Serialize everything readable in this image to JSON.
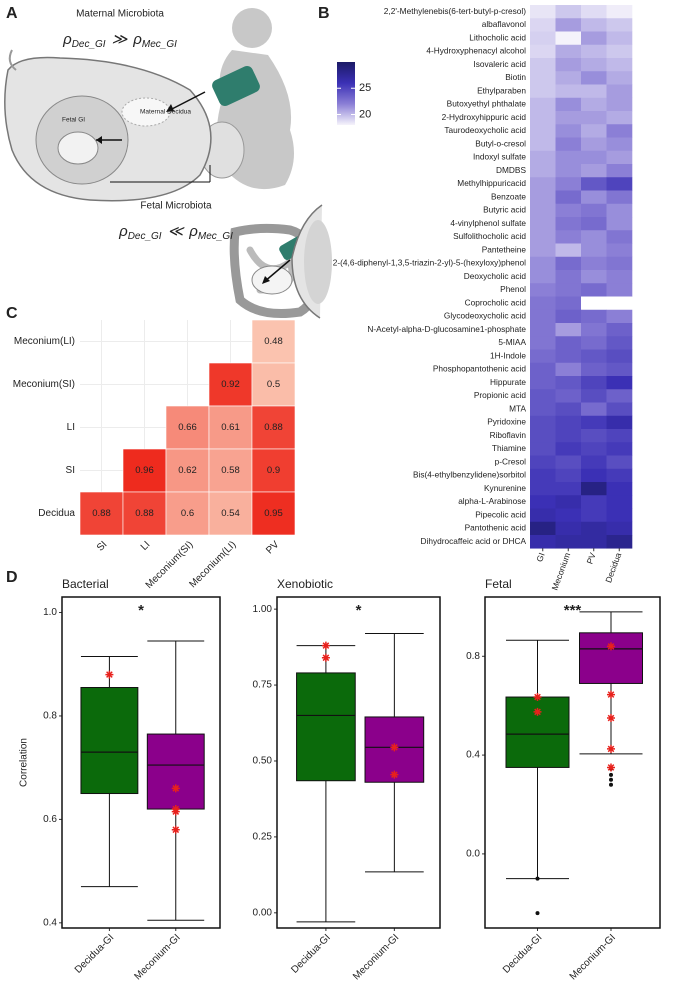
{
  "panel_labels": [
    "A",
    "B",
    "C",
    "D"
  ],
  "panel_a": {
    "symbol": "ρ",
    "top_title": "Maternal Microbiota",
    "top_formula": {
      "left": "Dec_GI",
      "op": "≫",
      "right": "Mec_GI"
    },
    "maternal_decidua": "Maternal Decidua",
    "fetal_gi": "Fetal GI",
    "bottom_title": "Fetal Microbiota",
    "bottom_formula": {
      "left": "Dec_GI",
      "op": "≪",
      "right": "Mec_GI"
    }
  },
  "chart_data": [
    {
      "type": "heatmap",
      "rows": [
        "2,2'-Methylenebis(6-tert-butyl-p-cresol)",
        "albaflavonol",
        "Lithocholic acid",
        "4-Hydroxyphenacyl alcohol",
        "Isovaleric acid",
        "Biotin",
        "Ethylparaben",
        "Butoxyethyl phthalate",
        "2-Hydroxyhippuric acid",
        "Taurodeoxycholic acid",
        "Butyl-o-cresol",
        "Indoxyl sulfate",
        "DMDBS",
        "Methylhippuricacid",
        "Benzoate",
        "Butyric acid",
        "4-vinylphenol sulfate",
        "Sulfolithocholic acid",
        "Pantetheine",
        "2-(4,6-diphenyl-1,3,5-triazin-2-yl)-5-(hexyloxy)phenol",
        "Deoxycholic acid",
        "Phenol",
        "Coprocholic acid",
        "Glycodeoxycholic acid",
        "N-Acetyl-alpha-D-glucosamine1-phosphate",
        "5-MIAA",
        "1H-Indole",
        "Phosphopantothenic acid",
        "Hippurate",
        "Propionic acid",
        "MTA",
        "Pyridoxine",
        "Riboflavin",
        "Thiamine",
        "p-Cresol",
        "Bis(4-ethylbenzylidene)sorbitol",
        "Kynurenine",
        "alpha-L-Arabinose",
        "Pipecolic acid",
        "Pantothenic acid",
        "Dihydrocaffeic acid or DHCA"
      ],
      "columns": [
        "GI",
        "Meconium",
        "PV",
        "Decidua"
      ],
      "values": [
        [
          18.5,
          19.5,
          18.8,
          18.2
        ],
        [
          19.0,
          21.0,
          20.0,
          19.5
        ],
        [
          19.2,
          18.0,
          21.0,
          20.0
        ],
        [
          19.0,
          20.5,
          20.0,
          19.5
        ],
        [
          19.5,
          21.0,
          20.5,
          20.0
        ],
        [
          19.5,
          20.5,
          21.5,
          20.5
        ],
        [
          19.5,
          20.0,
          20.0,
          21.0
        ],
        [
          20.0,
          21.5,
          20.5,
          21.0
        ],
        [
          20.0,
          21.0,
          21.0,
          20.5
        ],
        [
          20.0,
          21.5,
          20.5,
          22.0
        ],
        [
          20.0,
          22.0,
          21.0,
          21.5
        ],
        [
          20.5,
          21.5,
          21.5,
          21.0
        ],
        [
          20.5,
          21.5,
          21.0,
          22.0
        ],
        [
          21.0,
          22.0,
          24.0,
          25.0
        ],
        [
          21.0,
          23.0,
          21.5,
          22.5
        ],
        [
          21.0,
          22.0,
          22.5,
          21.5
        ],
        [
          21.0,
          22.5,
          23.0,
          21.5
        ],
        [
          21.0,
          22.0,
          21.5,
          22.5
        ],
        [
          21.0,
          20.0,
          21.5,
          22.0
        ],
        [
          21.5,
          23.0,
          22.0,
          22.5
        ],
        [
          21.5,
          22.5,
          21.5,
          22.0
        ],
        [
          22.0,
          22.5,
          23.0,
          22.0
        ],
        [
          22.5,
          23.0,
          null,
          null
        ],
        [
          22.5,
          23.5,
          23.0,
          22.0
        ],
        [
          22.5,
          21.0,
          22.5,
          23.5
        ],
        [
          22.5,
          23.5,
          23.0,
          24.0
        ],
        [
          23.0,
          23.5,
          24.0,
          24.5
        ],
        [
          23.5,
          22.0,
          23.5,
          24.0
        ],
        [
          23.5,
          24.0,
          25.0,
          26.0
        ],
        [
          24.0,
          23.5,
          24.5,
          23.5
        ],
        [
          24.0,
          24.5,
          23.0,
          24.5
        ],
        [
          24.5,
          25.0,
          25.5,
          26.5
        ],
        [
          24.5,
          25.0,
          24.5,
          25.0
        ],
        [
          24.5,
          25.5,
          25.0,
          25.5
        ],
        [
          25.0,
          24.5,
          25.5,
          24.5
        ],
        [
          25.5,
          25.0,
          26.0,
          25.5
        ],
        [
          25.5,
          25.5,
          28.5,
          26.0
        ],
        [
          26.0,
          26.5,
          25.5,
          26.0
        ],
        [
          26.5,
          26.0,
          25.5,
          26.0
        ],
        [
          28.5,
          26.5,
          27.0,
          26.5
        ],
        [
          26.5,
          27.0,
          27.0,
          28.0
        ]
      ],
      "clim": [
        18,
        30
      ],
      "cticks": [
        20,
        25
      ],
      "colors": [
        "#f5f3fb",
        "#8b7fd6",
        "#3b30b5",
        "#1b1a66"
      ]
    },
    {
      "type": "correlation_heatmap",
      "rows": [
        "Meconium(LI)",
        "Meconium(SI)",
        "LI",
        "SI",
        "Decidua"
      ],
      "columns": [
        "SI",
        "LI",
        "Meconium(SI)",
        "Meconium(LI)",
        "PV"
      ],
      "values": [
        [
          null,
          null,
          null,
          null,
          0.48
        ],
        [
          null,
          null,
          null,
          0.92,
          0.5
        ],
        [
          null,
          null,
          0.66,
          0.61,
          0.88
        ],
        [
          null,
          0.96,
          0.62,
          0.58,
          0.9
        ],
        [
          0.88,
          0.88,
          0.6,
          0.54,
          0.95
        ]
      ],
      "colors": [
        "#fbc3af",
        "#ee2b1e"
      ]
    },
    {
      "type": "box",
      "title": "Bacterial",
      "annotation": "*",
      "ylabel": "Correlation",
      "categories": [
        "Decidua-GI",
        "Meconium-GI"
      ],
      "colors": [
        "#0b6a0b",
        "#8b008b"
      ],
      "point_color": "#e8211c",
      "ylim": [
        0.39,
        1.03
      ],
      "yticks": [
        0.4,
        0.6,
        0.8,
        {
          "value": 1.0,
          "label": "1.0"
        }
      ],
      "boxes": [
        {
          "whislo": 0.47,
          "q1": 0.65,
          "med": 0.73,
          "q3": 0.855,
          "whishi": 0.915,
          "fliers": [],
          "points": [
            0.88
          ]
        },
        {
          "whislo": 0.405,
          "q1": 0.62,
          "med": 0.705,
          "q3": 0.765,
          "whishi": 0.945,
          "fliers": [],
          "points": [
            0.66,
            0.62,
            0.615,
            0.58
          ]
        }
      ]
    },
    {
      "type": "box",
      "title": "Xenobiotic",
      "annotation": "*",
      "categories": [
        "Decidua-GI",
        "Meconium-GI"
      ],
      "colors": [
        "#0b6a0b",
        "#8b008b"
      ],
      "point_color": "#e8211c",
      "ylim": [
        -0.05,
        1.04
      ],
      "yticks": [
        {
          "value": 0,
          "label": "0.00"
        },
        {
          "value": 0.25,
          "label": "0.25"
        },
        {
          "value": 0.5,
          "label": "0.50"
        },
        {
          "value": 0.75,
          "label": "0.75"
        },
        {
          "value": 1.0,
          "label": "1.00"
        }
      ],
      "boxes": [
        {
          "whislo": -0.03,
          "q1": 0.435,
          "med": 0.65,
          "q3": 0.79,
          "whishi": 0.88,
          "fliers": [],
          "points": [
            0.88,
            0.84
          ]
        },
        {
          "whislo": 0.135,
          "q1": 0.43,
          "med": 0.545,
          "q3": 0.645,
          "whishi": 0.92,
          "fliers": [],
          "points": [
            0.545,
            0.455
          ]
        }
      ]
    },
    {
      "type": "box",
      "title": "Fetal",
      "annotation": "***",
      "categories": [
        "Decidua-GI",
        "Meconium-GI"
      ],
      "colors": [
        "#0b6a0b",
        "#8b008b"
      ],
      "point_color": "#e8211c",
      "ylim": [
        -0.3,
        1.04
      ],
      "yticks": [
        {
          "value": 0,
          "label": "0.0"
        },
        0.4,
        0.8
      ],
      "boxes": [
        {
          "whislo": -0.1,
          "q1": 0.35,
          "med": 0.485,
          "q3": 0.635,
          "whishi": 0.865,
          "fliers": [
            -0.1,
            -0.24
          ],
          "points": [
            0.635,
            0.575
          ]
        },
        {
          "whislo": 0.405,
          "q1": 0.69,
          "med": 0.83,
          "q3": 0.895,
          "whishi": 0.98,
          "fliers": [
            0.345,
            0.32,
            0.3,
            0.28
          ],
          "points": [
            0.84,
            0.645,
            0.55,
            0.425,
            0.35
          ]
        }
      ]
    }
  ]
}
